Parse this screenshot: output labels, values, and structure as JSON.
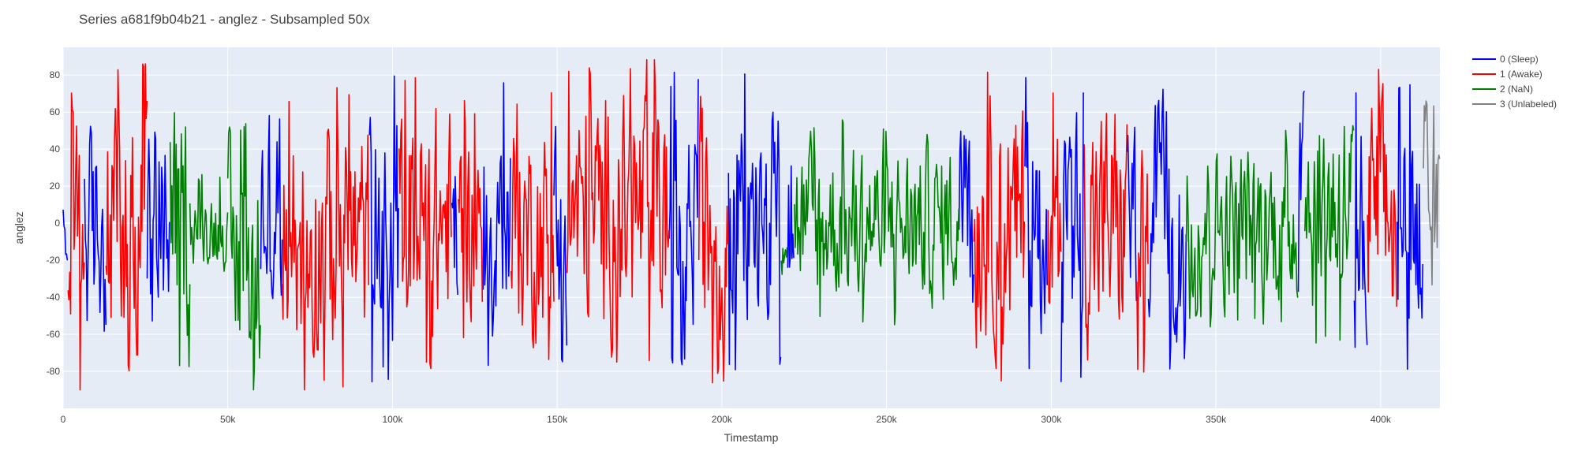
{
  "chart_data": {
    "type": "line",
    "title": "Series a681f9b04b21 - anglez - Subsampled 50x",
    "xlabel": "Timestamp",
    "ylabel": "anglez",
    "xlim": [
      0,
      418000
    ],
    "ylim": [
      -100,
      95
    ],
    "xticks": [
      0,
      50000,
      100000,
      150000,
      200000,
      250000,
      300000,
      350000,
      400000
    ],
    "xtick_labels": [
      "0",
      "50k",
      "100k",
      "150k",
      "200k",
      "250k",
      "300k",
      "350k",
      "400k"
    ],
    "yticks": [
      -80,
      -60,
      -40,
      -20,
      0,
      20,
      40,
      60,
      80
    ],
    "grid": true,
    "legend_position": "top-right",
    "plot_background": "#e5ecf6",
    "series": [
      {
        "name": "0 (Sleep)",
        "color": "#0000ff",
        "segments": [
          {
            "x0": 0,
            "x1": 1500,
            "amplitude": 30,
            "center": -10
          },
          {
            "x0": 6500,
            "x1": 13000,
            "amplitude": 75,
            "center": -5
          },
          {
            "x0": 25500,
            "x1": 32500,
            "amplitude": 80,
            "center": -5
          },
          {
            "x0": 60000,
            "x1": 66500,
            "amplitude": 80,
            "center": 5
          },
          {
            "x0": 93000,
            "x1": 102000,
            "amplitude": 85,
            "center": 0
          },
          {
            "x0": 118000,
            "x1": 120000,
            "amplitude": 75,
            "center": -10
          },
          {
            "x0": 127500,
            "x1": 136000,
            "amplitude": 80,
            "center": 0
          },
          {
            "x0": 149000,
            "x1": 153000,
            "amplitude": 80,
            "center": 0
          },
          {
            "x0": 184000,
            "x1": 193000,
            "amplitude": 80,
            "center": 0
          },
          {
            "x0": 202000,
            "x1": 218000,
            "amplitude": 80,
            "center": 0
          },
          {
            "x0": 220000,
            "x1": 222000,
            "amplitude": 60,
            "center": 0
          },
          {
            "x0": 272000,
            "x1": 276500,
            "amplitude": 85,
            "center": -20
          },
          {
            "x0": 292000,
            "x1": 299000,
            "amplitude": 80,
            "center": 0
          },
          {
            "x0": 303000,
            "x1": 310000,
            "amplitude": 80,
            "center": -10
          },
          {
            "x0": 323000,
            "x1": 326000,
            "amplitude": 70,
            "center": 0
          },
          {
            "x0": 329500,
            "x1": 341000,
            "amplitude": 80,
            "center": 0
          },
          {
            "x0": 375000,
            "x1": 377000,
            "amplitude": 70,
            "center": 0
          },
          {
            "x0": 392000,
            "x1": 396000,
            "amplitude": 80,
            "center": -10
          },
          {
            "x0": 405000,
            "x1": 413000,
            "amplitude": 80,
            "center": 0
          }
        ]
      },
      {
        "name": "1 (Awake)",
        "color": "#ff0000",
        "segments": [
          {
            "x0": 1500,
            "x1": 6500,
            "amplitude": 80,
            "center": -10
          },
          {
            "x0": 13000,
            "x1": 25500,
            "amplitude": 85,
            "center": 0
          },
          {
            "x0": 66500,
            "x1": 93000,
            "amplitude": 82,
            "center": -10
          },
          {
            "x0": 102000,
            "x1": 118000,
            "amplitude": 80,
            "center": 0
          },
          {
            "x0": 120000,
            "x1": 127500,
            "amplitude": 65,
            "center": 0
          },
          {
            "x0": 136000,
            "x1": 149000,
            "amplitude": 75,
            "center": -5
          },
          {
            "x0": 153000,
            "x1": 184000,
            "amplitude": 85,
            "center": 5
          },
          {
            "x0": 193000,
            "x1": 202000,
            "amplitude": 85,
            "center": 0
          },
          {
            "x0": 276500,
            "x1": 292000,
            "amplitude": 85,
            "center": 0
          },
          {
            "x0": 299000,
            "x1": 303000,
            "amplitude": 70,
            "center": 0
          },
          {
            "x0": 310000,
            "x1": 323000,
            "amplitude": 85,
            "center": 0
          },
          {
            "x0": 326000,
            "x1": 329500,
            "amplitude": 70,
            "center": -10
          },
          {
            "x0": 396000,
            "x1": 405000,
            "amplitude": 85,
            "center": 0
          }
        ]
      },
      {
        "name": "2 (NaN)",
        "color": "#008000",
        "segments": [
          {
            "x0": 32500,
            "x1": 38500,
            "amplitude": 80,
            "center": 0
          },
          {
            "x0": 38500,
            "x1": 50000,
            "amplitude": 28,
            "center": -2
          },
          {
            "x0": 50000,
            "x1": 60000,
            "amplitude": 75,
            "center": -20
          },
          {
            "x0": 218000,
            "x1": 220000,
            "amplitude": 40,
            "center": 0
          },
          {
            "x0": 222000,
            "x1": 272000,
            "amplitude": 55,
            "center": 0
          },
          {
            "x0": 341000,
            "x1": 375000,
            "amplitude": 55,
            "center": 0
          },
          {
            "x0": 377000,
            "x1": 392000,
            "amplitude": 75,
            "center": 10
          }
        ]
      },
      {
        "name": "3 (Unlabeled)",
        "color": "#808080",
        "segments": [
          {
            "x0": 413000,
            "x1": 418000,
            "amplitude": 65,
            "center": 0
          }
        ]
      }
    ]
  }
}
